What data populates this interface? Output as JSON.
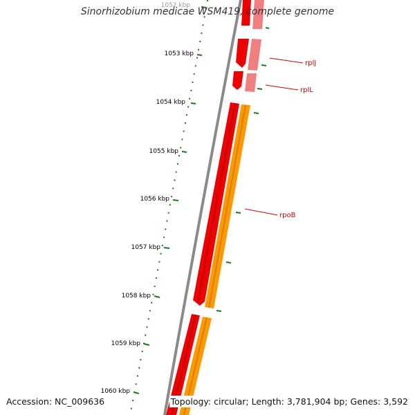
{
  "title": "Sinorhizobium medicae WSM419, complete genome",
  "accession": "Accession: NC_009636",
  "summary": "Topology: circular; Length: 3,781,904 bp; Genes: 3,592",
  "ruler": {
    "tick_labels": [
      "1052 kbp",
      "1053 kbp",
      "1054 kbp",
      "1055 kbp",
      "1056 kbp",
      "1057 kbp",
      "1058 kbp",
      "1059 kbp",
      "1060 kbp"
    ]
  },
  "genes": [
    {
      "label": "rplJ"
    },
    {
      "label": "rplL"
    },
    {
      "label": "rpoB"
    }
  ],
  "colors": {
    "backbone": "#8a8a8a",
    "gene_forward": "#ee0000",
    "gene_forward_light": "#f07f7f",
    "cds": "#ff9900",
    "ruler": "#1a7a1a",
    "label": "#cc0000",
    "tick_label": "#000000"
  }
}
